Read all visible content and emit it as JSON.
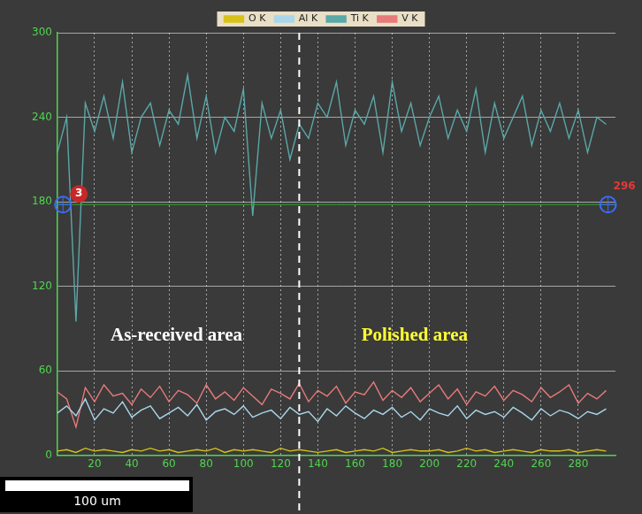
{
  "chart_data": {
    "type": "line",
    "x": [
      0,
      5,
      10,
      15,
      20,
      25,
      30,
      35,
      40,
      45,
      50,
      55,
      60,
      65,
      70,
      75,
      80,
      85,
      90,
      95,
      100,
      105,
      110,
      115,
      120,
      125,
      130,
      135,
      140,
      145,
      150,
      155,
      160,
      165,
      170,
      175,
      180,
      185,
      190,
      195,
      200,
      205,
      210,
      215,
      220,
      225,
      230,
      235,
      240,
      245,
      250,
      255,
      260,
      265,
      270,
      275,
      280,
      285,
      290,
      295
    ],
    "xlim": [
      0,
      300
    ],
    "xticks": [
      20,
      40,
      60,
      80,
      100,
      120,
      140,
      160,
      180,
      200,
      220,
      240,
      260,
      280
    ],
    "ylim": [
      0,
      300
    ],
    "yticks": [
      0,
      60,
      120,
      180,
      240,
      300
    ],
    "grid": true,
    "legend": "top",
    "series": [
      {
        "name": "O K",
        "color": "#d8c21a",
        "values": [
          3,
          4,
          2,
          5,
          3,
          4,
          3,
          2,
          4,
          3,
          5,
          3,
          4,
          2,
          3,
          4,
          3,
          5,
          2,
          4,
          3,
          4,
          3,
          2,
          5,
          3,
          4,
          3,
          2,
          3,
          4,
          2,
          3,
          4,
          3,
          5,
          2,
          3,
          4,
          3,
          3,
          4,
          2,
          3,
          5,
          3,
          4,
          2,
          3,
          4,
          3,
          2,
          4,
          3,
          3,
          4,
          2,
          3,
          4,
          3
        ]
      },
      {
        "name": "Al K",
        "color": "#a9d6ea",
        "values": [
          30,
          35,
          28,
          40,
          25,
          33,
          30,
          38,
          27,
          32,
          35,
          26,
          30,
          34,
          28,
          36,
          25,
          31,
          33,
          29,
          35,
          27,
          30,
          32,
          26,
          34,
          29,
          31,
          24,
          33,
          28,
          35,
          30,
          26,
          32,
          29,
          34,
          27,
          31,
          25,
          33,
          30,
          28,
          35,
          26,
          32,
          29,
          31,
          27,
          34,
          30,
          25,
          33,
          28,
          32,
          30,
          26,
          31,
          29,
          33
        ]
      },
      {
        "name": "Ti K",
        "color": "#5ba8a8",
        "values": [
          215,
          240,
          95,
          250,
          230,
          255,
          225,
          265,
          215,
          240,
          250,
          220,
          245,
          235,
          270,
          225,
          255,
          215,
          240,
          230,
          260,
          170,
          250,
          225,
          245,
          210,
          235,
          225,
          250,
          240,
          265,
          220,
          245,
          235,
          255,
          215,
          265,
          230,
          250,
          220,
          240,
          255,
          225,
          245,
          230,
          260,
          215,
          250,
          225,
          240,
          255,
          220,
          245,
          230,
          250,
          225,
          245,
          215,
          240,
          235
        ]
      },
      {
        "name": "V K",
        "color": "#e87a7a",
        "values": [
          45,
          40,
          20,
          48,
          38,
          50,
          42,
          44,
          36,
          47,
          41,
          49,
          38,
          46,
          43,
          37,
          50,
          40,
          45,
          39,
          48,
          42,
          36,
          47,
          44,
          40,
          51,
          38,
          46,
          42,
          49,
          37,
          45,
          43,
          52,
          39,
          46,
          41,
          48,
          38,
          44,
          50,
          40,
          47,
          36,
          45,
          42,
          49,
          39,
          46,
          43,
          38,
          48,
          41,
          45,
          50,
          37,
          44,
          40,
          46
        ]
      }
    ],
    "annotations": [
      {
        "text": "As-received area",
        "x": 64,
        "y": 85,
        "color": "#ffffff"
      },
      {
        "text": "Polished area",
        "x": 192,
        "y": 85,
        "color": "#ffff33"
      }
    ],
    "divider_x": 130,
    "cursor": {
      "y": 178,
      "markers": [
        {
          "x": 3,
          "label": "3"
        },
        {
          "x": 296,
          "label": "296"
        }
      ]
    },
    "scale_bar": "100 um"
  }
}
